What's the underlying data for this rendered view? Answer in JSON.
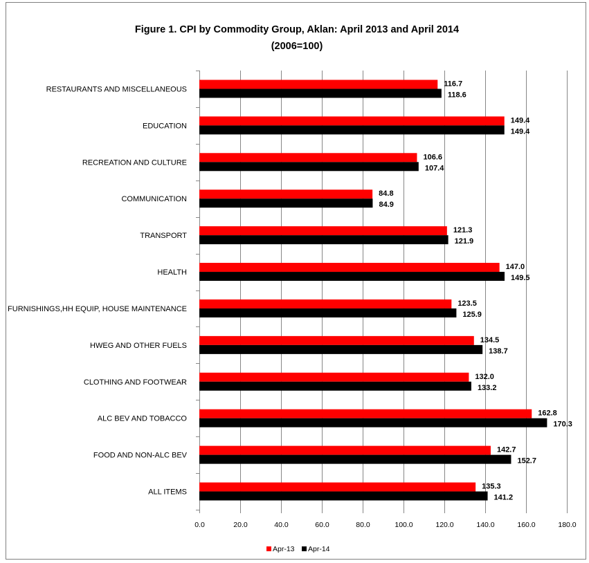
{
  "chart_data": {
    "type": "bar",
    "orientation": "horizontal",
    "title": "Figure 1. CPI by Commodity Group, Aklan: April 2013 and April 2014",
    "subtitle": "(2006=100)",
    "categories": [
      "RESTAURANTS AND MISCELLANEOUS",
      "EDUCATION",
      "RECREATION AND CULTURE",
      "COMMUNICATION",
      "TRANSPORT",
      "HEALTH",
      "FURNISHINGS,HH EQUIP, HOUSE MAINTENANCE",
      "HWEG AND OTHER FUELS",
      "CLOTHING AND FOOTWEAR",
      "ALC BEV AND TOBACCO",
      "FOOD AND NON-ALC BEV",
      "ALL ITEMS"
    ],
    "series": [
      {
        "name": "Apr-13",
        "color": "#ff0000",
        "values": [
          116.7,
          149.4,
          106.6,
          84.8,
          121.3,
          147.0,
          123.5,
          134.5,
          132.0,
          162.8,
          142.7,
          135.3
        ],
        "labels": [
          "116.7",
          "149.4",
          "106.6",
          "84.8",
          "121.3",
          "147.0",
          "123.5",
          "134.5",
          "132.0",
          "162.8",
          "142.7",
          "135.3"
        ]
      },
      {
        "name": "Apr-14",
        "color": "#000000",
        "values": [
          118.6,
          149.4,
          107.4,
          84.9,
          121.9,
          149.5,
          125.9,
          138.7,
          133.2,
          170.3,
          152.7,
          141.2
        ],
        "labels": [
          "118.6",
          "149.4",
          "107.4",
          "84.9",
          "121.9",
          "149.5",
          "125.9",
          "138.7",
          "133.2",
          "170.3",
          "152.7",
          "141.2"
        ]
      }
    ],
    "xlim": [
      0,
      180
    ],
    "xticks": [
      "0.0",
      "20.0",
      "40.0",
      "60.0",
      "80.0",
      "100.0",
      "120.0",
      "140.0",
      "160.0",
      "180.0"
    ],
    "xlabel": "",
    "ylabel": "",
    "grid": "vertical",
    "legend_position": "bottom",
    "gridline_color": "#868686"
  }
}
